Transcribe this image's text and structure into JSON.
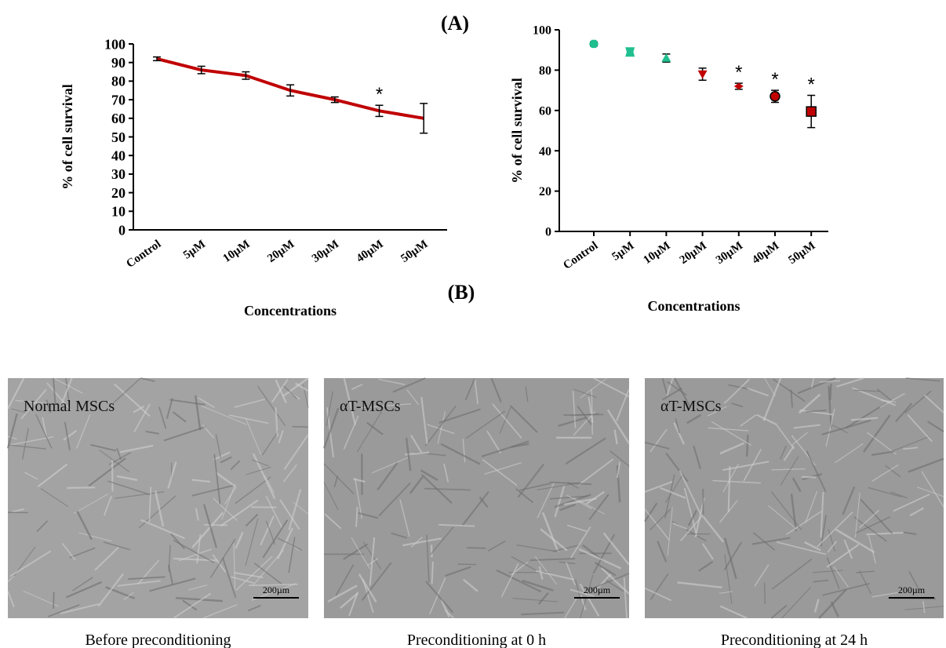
{
  "chart_data": [
    {
      "type": "line",
      "title": "(A)",
      "x_label": "Concentrations",
      "y_label": "% of cell survival",
      "categories": [
        "Control",
        "5µM",
        "10µM",
        "20µM",
        "30µM",
        "40µM",
        "50µM"
      ],
      "values": [
        92,
        86,
        83,
        75,
        70,
        64,
        60
      ],
      "errors": [
        1,
        2,
        2,
        3,
        1.5,
        3,
        8
      ],
      "point_labels": [
        null,
        null,
        null,
        null,
        null,
        "*",
        null
      ],
      "color": "#c00000",
      "ylim": [
        0,
        100
      ],
      "yticks": [
        0,
        10,
        20,
        30,
        40,
        50,
        60,
        70,
        80,
        90,
        100
      ]
    },
    {
      "type": "scatter",
      "title": "(B)",
      "x_label": "Concentrations",
      "y_label": "% of cell survival",
      "categories": [
        "Control",
        "5µM",
        "10µM",
        "20µM",
        "30µM",
        "40µM",
        "50µM"
      ],
      "values": [
        93,
        89,
        86,
        78,
        72,
        67,
        59.5
      ],
      "errors": [
        1,
        1.5,
        2,
        3,
        1.5,
        3,
        8
      ],
      "point_labels": [
        null,
        null,
        null,
        null,
        "*",
        "*",
        "*"
      ],
      "colors": [
        "#1fbf8f",
        "#1fbf8f",
        "#1fbf8f",
        "#c00000",
        "#c00000",
        "#c00000",
        "#c00000"
      ],
      "markers": [
        "hexagon",
        "hourglass",
        "triangle-up",
        "triangle-down",
        "diamond",
        "circle",
        "square"
      ],
      "ylim": [
        0,
        100
      ],
      "yticks": [
        0,
        20,
        40,
        60,
        80,
        100
      ]
    }
  ],
  "images": [
    {
      "label": "Normal MSCs",
      "scale_bar": "200µm",
      "caption": "Before preconditioning"
    },
    {
      "label": "αT-MSCs",
      "scale_bar": "200µm",
      "caption": "Preconditioning at 0 h"
    },
    {
      "label": "αT-MSCs",
      "scale_bar": "200µm",
      "caption": "Preconditioning at 24 h"
    }
  ]
}
